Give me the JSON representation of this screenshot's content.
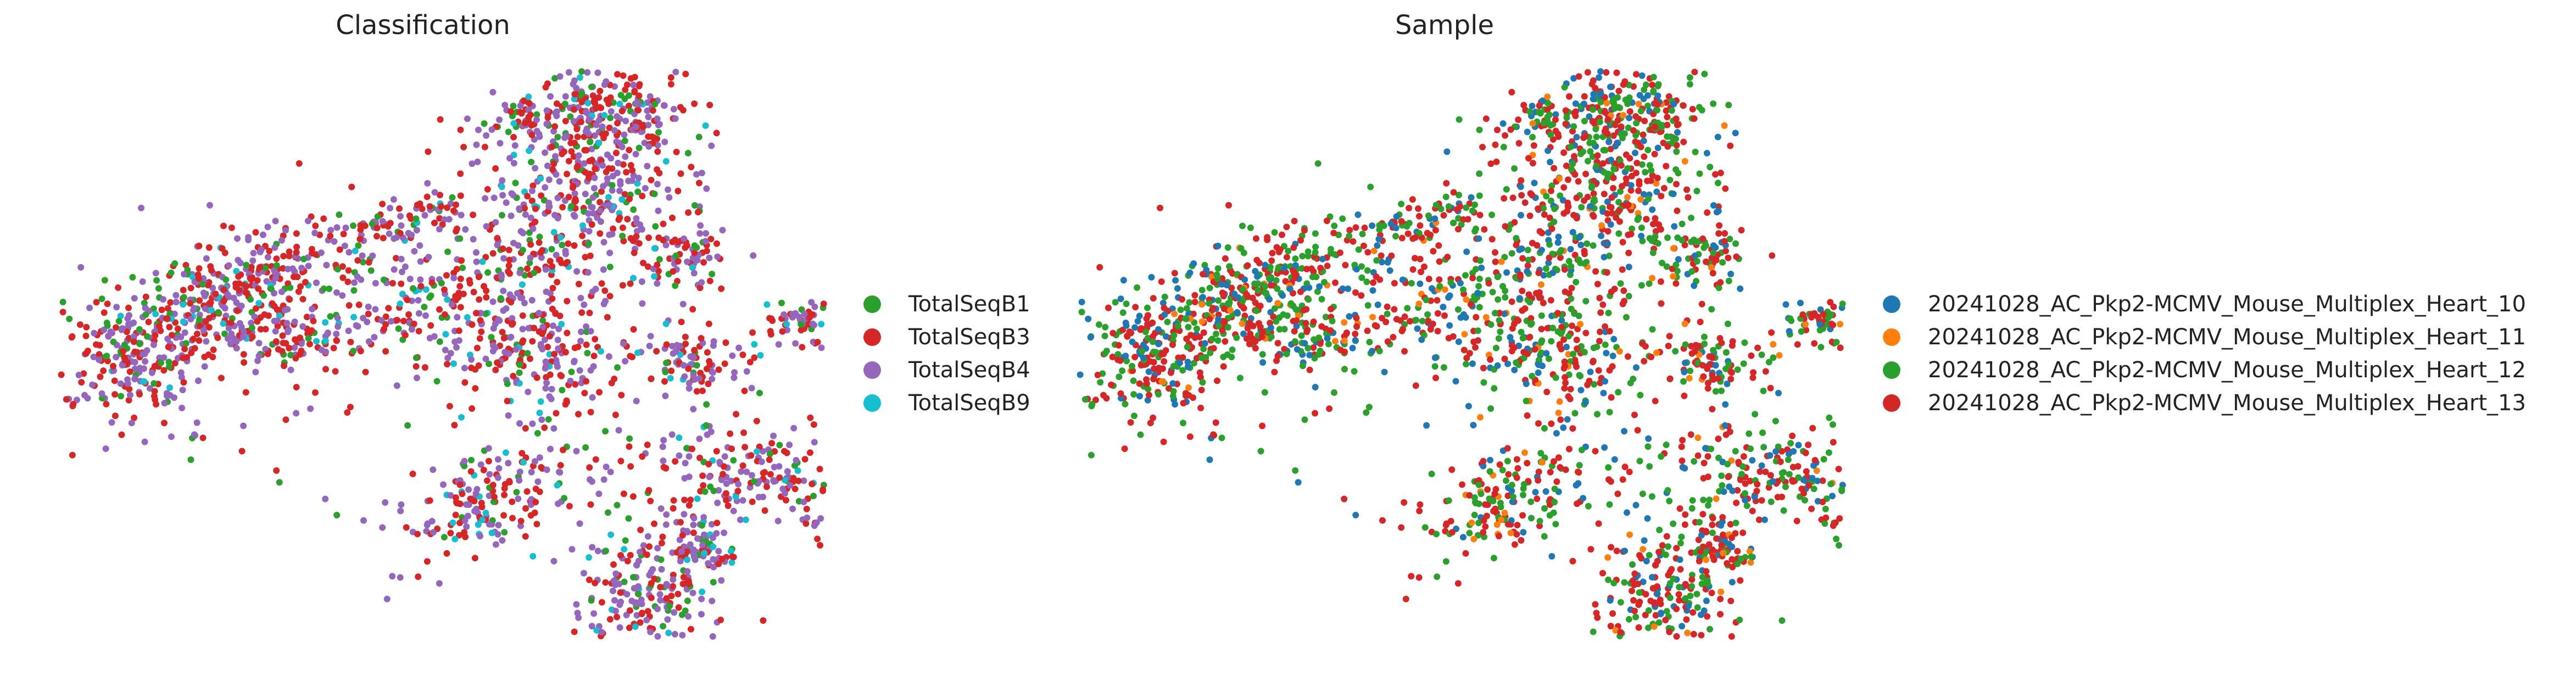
{
  "chart_data": [
    {
      "type": "scatter",
      "title": "Classification",
      "legend": "right",
      "grid": false,
      "series": [
        {
          "name": "TotalSeqB1",
          "color": "#2ca02c"
        },
        {
          "name": "TotalSeqB3",
          "color": "#d62728"
        },
        {
          "name": "TotalSeqB4",
          "color": "#9467bd"
        },
        {
          "name": "TotalSeqB9",
          "color": "#17becf"
        }
      ]
    },
    {
      "type": "scatter",
      "title": "Sample",
      "legend": "right",
      "grid": false,
      "series": [
        {
          "name": "20241028_AC_Pkp2-MCMV_Mouse_Multiplex_Heart_10",
          "color": "#1f77b4"
        },
        {
          "name": "20241028_AC_Pkp2-MCMV_Mouse_Multiplex_Heart_11",
          "color": "#ff7f0e"
        },
        {
          "name": "20241028_AC_Pkp2-MCMV_Mouse_Multiplex_Heart_12",
          "color": "#2ca02c"
        },
        {
          "name": "20241028_AC_Pkp2-MCMV_Mouse_Multiplex_Heart_13",
          "color": "#d62728"
        }
      ]
    }
  ]
}
